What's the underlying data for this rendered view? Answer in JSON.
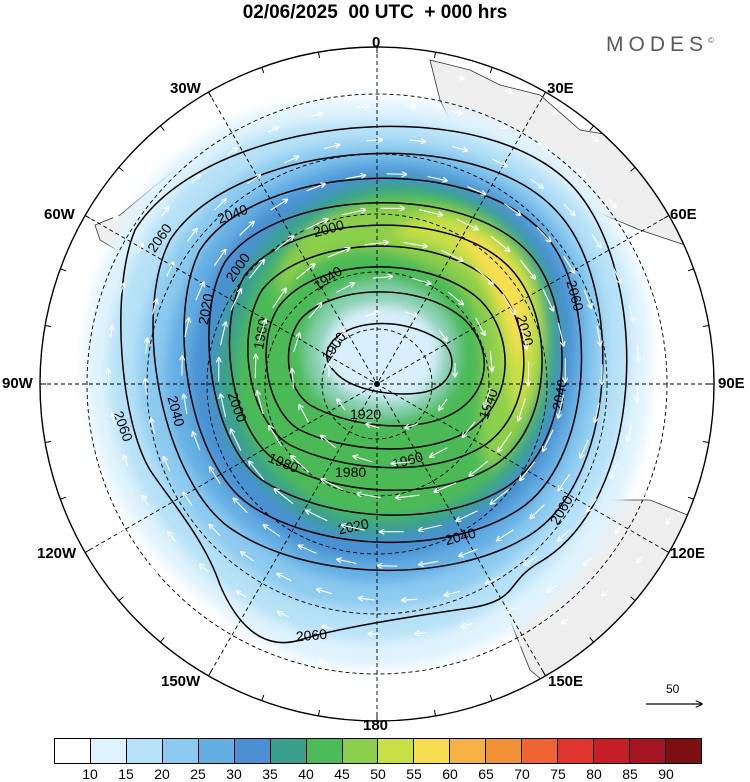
{
  "header": {
    "title": "02/06/2025  00 UTC  + 000 hrs",
    "brand": "MODES",
    "brand_mark": "©"
  },
  "map": {
    "projection": "south-polar-stereographic",
    "longitude_labels": {
      "top": "0",
      "top_right": "30E",
      "right_upper": "60E",
      "right": "90E",
      "right_lower": "120E",
      "bottom_right": "150E",
      "bottom": "180",
      "bottom_left": "150W",
      "left_lower": "120W",
      "left": "90W",
      "left_upper": "60W",
      "top_left": "30W"
    },
    "contour_labels": [
      "2060",
      "2040",
      "2060",
      "2020",
      "2000",
      "2000",
      "1940",
      "1960",
      "1900",
      "2040",
      "2000",
      "1920",
      "1940",
      "1980",
      "1980",
      "1960",
      "2020",
      "2040",
      "2060",
      "2060",
      "2060",
      "2020",
      "2040"
    ],
    "vector_scale_label": "50"
  },
  "colorbar": {
    "colors": [
      "#ffffff",
      "#dff3fd",
      "#b6e1f7",
      "#8ccaf0",
      "#63aee3",
      "#4a90d2",
      "#3aa08c",
      "#4cba57",
      "#8ccf4c",
      "#c8df46",
      "#f6de50",
      "#f6b144",
      "#f29038",
      "#ee6432",
      "#e0352c",
      "#c61e26",
      "#a31521",
      "#7e1014"
    ],
    "ticks": [
      "10",
      "15",
      "20",
      "25",
      "30",
      "35",
      "40",
      "45",
      "50",
      "55",
      "60",
      "65",
      "70",
      "75",
      "80",
      "85",
      "90"
    ]
  }
}
